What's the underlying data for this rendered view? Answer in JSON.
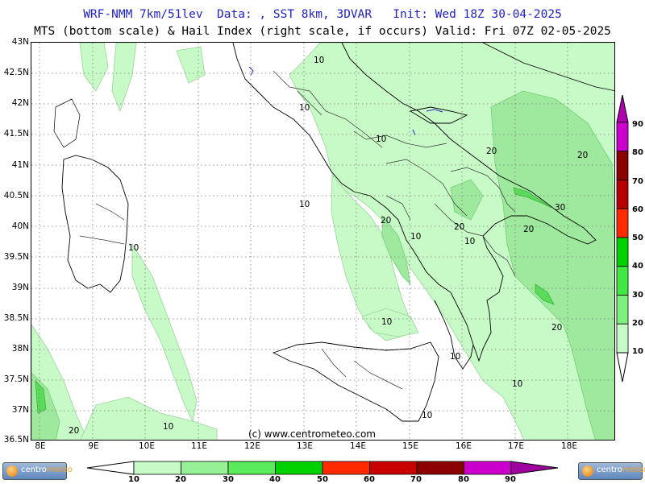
{
  "header": {
    "line1": "WRF-NMM 7km/51lev  Data: , SST 8km, 3DVAR   Init: Wed 18Z 30-04-2025",
    "line2": "MTS (bottom scale) & Hail Index (right scale, if occurs) Valid: Fri 07Z 02-05-2025"
  },
  "axes": {
    "lat_labels": [
      "43N",
      "42.5N",
      "42N",
      "41.5N",
      "41N",
      "40.5N",
      "40N",
      "39.5N",
      "39N",
      "38.5N",
      "38N",
      "37.5N",
      "37N",
      "36.5N"
    ],
    "lon_labels": [
      "8E",
      "9E",
      "10E",
      "11E",
      "12E",
      "13E",
      "14E",
      "15E",
      "16E",
      "17E",
      "18E"
    ]
  },
  "contour_labels": [
    {
      "text": "10",
      "id": "c1"
    },
    {
      "text": "10",
      "id": "c2"
    },
    {
      "text": "10",
      "id": "c3"
    },
    {
      "text": "10",
      "id": "c4"
    },
    {
      "text": "20",
      "id": "c5"
    },
    {
      "text": "10",
      "id": "c6"
    },
    {
      "text": "20",
      "id": "c7"
    },
    {
      "text": "10",
      "id": "c8"
    },
    {
      "text": "20",
      "id": "c9"
    },
    {
      "text": "20",
      "id": "c10"
    },
    {
      "text": "30",
      "id": "c11"
    },
    {
      "text": "20",
      "id": "c12"
    },
    {
      "text": "10",
      "id": "c13"
    },
    {
      "text": "10",
      "id": "c14"
    },
    {
      "text": "20",
      "id": "c15"
    },
    {
      "text": "10",
      "id": "c16"
    },
    {
      "text": "10",
      "id": "c17"
    },
    {
      "text": "10",
      "id": "c18"
    },
    {
      "text": "10",
      "id": "c19"
    },
    {
      "text": "20",
      "id": "c20"
    },
    {
      "text": "10",
      "id": "c21"
    }
  ],
  "copyright": "(c) www.centrometeo.com",
  "right_scale": {
    "labels": [
      "90",
      "80",
      "70",
      "60",
      "50",
      "40",
      "30",
      "20",
      "10"
    ],
    "colors": [
      "#cc00cc",
      "#8b0000",
      "#b40000",
      "#ff2a00",
      "#00d200",
      "#42e842",
      "#7df07d",
      "#c8fac8"
    ]
  },
  "bottom_scale": {
    "labels": [
      "10",
      "20",
      "30",
      "40",
      "50",
      "60",
      "70",
      "80",
      "90"
    ],
    "colors": [
      "#c8fac8",
      "#96f096",
      "#5aeb5a",
      "#00d200",
      "#ff2a00",
      "#c80000",
      "#8b0000",
      "#cc00cc"
    ]
  },
  "logos": {
    "left": {
      "text_main": "centro",
      "text_accent": "meteo"
    },
    "right": {
      "text_main": "centro",
      "text_accent": "meteo"
    }
  },
  "colors": {
    "title_blue": "#2121c8",
    "light_green": "#c8fac8",
    "mid_green": "#a0eea0",
    "dark_green": "#5adc5a"
  }
}
